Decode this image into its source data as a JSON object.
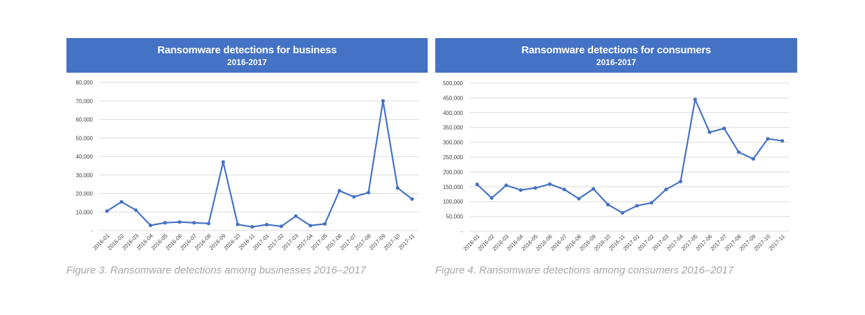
{
  "colors": {
    "header_bg": "#4472c4",
    "line": "#4472c4",
    "caption": "#a6a6a6"
  },
  "business": {
    "title": "Ransomware detections for business",
    "subtitle": "2016-2017",
    "caption": "Figure 3. Ransomware detections among businesses 2016–2017"
  },
  "consumers": {
    "title": "Ransomware detections for consumers",
    "subtitle": "2016-2017",
    "caption": "Figure 4. Ransomware detections among consumers 2016–2017"
  },
  "chart_data": [
    {
      "type": "line",
      "title": "Ransomware detections for business",
      "subtitle": "2016-2017",
      "categories": [
        "2016-01",
        "2016-02",
        "2016-03",
        "2016-04",
        "2016-05",
        "2016-06",
        "2016-07",
        "2016-08",
        "2016-09",
        "2016-10",
        "2016-11",
        "2017-01",
        "2017-02",
        "2017-03",
        "2017-04",
        "2017-05",
        "2017-06",
        "2017-07",
        "2017-08",
        "2017-09",
        "2017-10",
        "2017-11"
      ],
      "series": [
        {
          "values": [
            10500,
            15500,
            11000,
            2800,
            4200,
            4600,
            4200,
            3800,
            37000,
            3300,
            2000,
            3200,
            2300,
            7800,
            2700,
            3600,
            21500,
            18200,
            20500,
            70000,
            23000,
            17000
          ]
        }
      ],
      "ylim": [
        0,
        80000
      ],
      "yticks": [
        "-",
        "10,000",
        "20,000",
        "30,000",
        "40,000",
        "50,000",
        "60,000",
        "70,000",
        "80,000"
      ],
      "grid": true
    },
    {
      "type": "line",
      "title": "Ransomware detections for consumers",
      "subtitle": "2016-2017",
      "categories": [
        "2016-01",
        "2016-02",
        "2016-03",
        "2016-04",
        "2016-05",
        "2016-06",
        "2016-07",
        "2016-08",
        "2016-09",
        "2016-10",
        "2016-11",
        "2017-01",
        "2017-02",
        "2017-03",
        "2017-04",
        "2017-05",
        "2017-06",
        "2017-07",
        "2017-08",
        "2017-09",
        "2017-10",
        "2017-11"
      ],
      "series": [
        {
          "values": [
            158000,
            112000,
            155000,
            139000,
            146000,
            159000,
            141000,
            110000,
            143000,
            90000,
            62000,
            86000,
            96000,
            141000,
            168000,
            445000,
            334000,
            347000,
            267000,
            244000,
            312000,
            305000
          ]
        }
      ],
      "ylim": [
        0,
        500000
      ],
      "yticks": [
        "-",
        "50,000",
        "100,000",
        "150,000",
        "200,000",
        "250,000",
        "300,000",
        "350,000",
        "400,000",
        "450,000",
        "500,000"
      ],
      "grid": true
    }
  ]
}
